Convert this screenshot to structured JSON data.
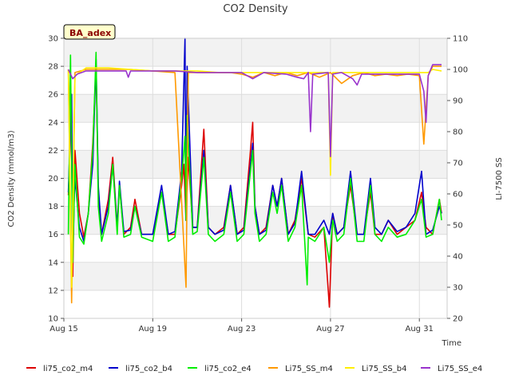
{
  "chart_data": {
    "type": "line",
    "title": "CO2 Density",
    "xlabel": "Time",
    "ylabel": "CO2 Density (mmol/m3)",
    "y2label": "LI-7500 SS",
    "annotation": "BA_adex",
    "x_ticks": [
      "Aug 15",
      "Aug 19",
      "Aug 23",
      "Aug 27",
      "Aug 31"
    ],
    "x_tick_days": [
      0,
      4,
      8,
      12,
      16
    ],
    "xlim_days": [
      0,
      17.25
    ],
    "ylim": [
      10,
      30
    ],
    "y_ticks": [
      10,
      12,
      14,
      16,
      18,
      20,
      22,
      24,
      26,
      28,
      30
    ],
    "y2lim": [
      20,
      110
    ],
    "y2_ticks": [
      20,
      30,
      40,
      50,
      60,
      70,
      80,
      90,
      100,
      110
    ],
    "grid": true,
    "legend_position": "bottom",
    "series": [
      {
        "name": "li75_co2_m4",
        "color": "#dd0000",
        "axis": "left",
        "points": [
          [
            0.2,
            18.8
          ],
          [
            0.35,
            25
          ],
          [
            0.4,
            13
          ],
          [
            0.5,
            22
          ],
          [
            0.7,
            17.5
          ],
          [
            0.9,
            15.8
          ],
          [
            1.1,
            17.5
          ],
          [
            1.3,
            22.5
          ],
          [
            1.45,
            28
          ],
          [
            1.55,
            19
          ],
          [
            1.7,
            16
          ],
          [
            2.0,
            18.5
          ],
          [
            2.2,
            21.5
          ],
          [
            2.4,
            16.5
          ],
          [
            2.5,
            19.5
          ],
          [
            2.7,
            16
          ],
          [
            3.0,
            16.5
          ],
          [
            3.2,
            18.5
          ],
          [
            3.5,
            16
          ],
          [
            4.0,
            16
          ],
          [
            4.4,
            19
          ],
          [
            4.7,
            16
          ],
          [
            5.0,
            16
          ],
          [
            5.3,
            19.5
          ],
          [
            5.4,
            21
          ],
          [
            5.5,
            17
          ],
          [
            5.6,
            21.5
          ],
          [
            5.8,
            16.5
          ],
          [
            6.0,
            16.5
          ],
          [
            6.3,
            23.5
          ],
          [
            6.5,
            16.5
          ],
          [
            6.8,
            16
          ],
          [
            7.2,
            16.5
          ],
          [
            7.5,
            19.5
          ],
          [
            7.8,
            16
          ],
          [
            8.1,
            16.5
          ],
          [
            8.4,
            22
          ],
          [
            8.5,
            24
          ],
          [
            8.6,
            18
          ],
          [
            8.8,
            16
          ],
          [
            9.1,
            16.5
          ],
          [
            9.4,
            19.5
          ],
          [
            9.6,
            18
          ],
          [
            9.8,
            20
          ],
          [
            10.1,
            16
          ],
          [
            10.4,
            17
          ],
          [
            10.7,
            20
          ],
          [
            11.0,
            16
          ],
          [
            11.3,
            15.8
          ],
          [
            11.7,
            16.5
          ],
          [
            11.9,
            12
          ],
          [
            11.95,
            10.8
          ],
          [
            12.1,
            17.5
          ],
          [
            12.3,
            16
          ],
          [
            12.6,
            16.5
          ],
          [
            12.9,
            19.5
          ],
          [
            13.2,
            16
          ],
          [
            13.5,
            16
          ],
          [
            13.8,
            19
          ],
          [
            14.0,
            16
          ],
          [
            14.3,
            16
          ],
          [
            14.6,
            17
          ],
          [
            15.0,
            16
          ],
          [
            15.4,
            16.5
          ],
          [
            15.8,
            17
          ],
          [
            16.1,
            19
          ],
          [
            16.3,
            16.5
          ],
          [
            16.6,
            16
          ],
          [
            16.9,
            18.5
          ],
          [
            17.0,
            17.5
          ]
        ]
      },
      {
        "name": "li75_co2_b4",
        "color": "#0000cc",
        "axis": "left",
        "points": [
          [
            0.2,
            19
          ],
          [
            0.35,
            26
          ],
          [
            0.4,
            16
          ],
          [
            0.5,
            20
          ],
          [
            0.7,
            16.5
          ],
          [
            0.9,
            15.5
          ],
          [
            1.1,
            17.5
          ],
          [
            1.3,
            21
          ],
          [
            1.45,
            28.5
          ],
          [
            1.55,
            19.5
          ],
          [
            1.7,
            16
          ],
          [
            2.0,
            18
          ],
          [
            2.2,
            21
          ],
          [
            2.4,
            16.5
          ],
          [
            2.5,
            19.8
          ],
          [
            2.7,
            16.2
          ],
          [
            3.0,
            16.3
          ],
          [
            3.2,
            18
          ],
          [
            3.5,
            16
          ],
          [
            4.0,
            16
          ],
          [
            4.4,
            19.5
          ],
          [
            4.7,
            16
          ],
          [
            5.0,
            16.2
          ],
          [
            5.3,
            20.5
          ],
          [
            5.45,
            30
          ],
          [
            5.5,
            17
          ],
          [
            5.55,
            28
          ],
          [
            5.8,
            16.5
          ],
          [
            6.0,
            16.5
          ],
          [
            6.3,
            22
          ],
          [
            6.5,
            16.5
          ],
          [
            6.8,
            16
          ],
          [
            7.2,
            16.3
          ],
          [
            7.5,
            19.5
          ],
          [
            7.8,
            16
          ],
          [
            8.1,
            16.3
          ],
          [
            8.4,
            21
          ],
          [
            8.5,
            22.5
          ],
          [
            8.6,
            18
          ],
          [
            8.8,
            16
          ],
          [
            9.1,
            16.3
          ],
          [
            9.4,
            19.5
          ],
          [
            9.6,
            18
          ],
          [
            9.8,
            20
          ],
          [
            10.1,
            16
          ],
          [
            10.4,
            16.8
          ],
          [
            10.7,
            20.5
          ],
          [
            11.0,
            16
          ],
          [
            11.3,
            16
          ],
          [
            11.7,
            17
          ],
          [
            11.95,
            16
          ],
          [
            12.1,
            17.5
          ],
          [
            12.3,
            16
          ],
          [
            12.6,
            16.5
          ],
          [
            12.9,
            20.5
          ],
          [
            13.2,
            16
          ],
          [
            13.5,
            16
          ],
          [
            13.8,
            20
          ],
          [
            14.0,
            16.5
          ],
          [
            14.3,
            16
          ],
          [
            14.6,
            17
          ],
          [
            15.0,
            16.2
          ],
          [
            15.4,
            16.5
          ],
          [
            15.8,
            17.5
          ],
          [
            16.0,
            19.5
          ],
          [
            16.1,
            20.5
          ],
          [
            16.3,
            16
          ],
          [
            16.6,
            16.3
          ],
          [
            16.9,
            18
          ],
          [
            17.0,
            17.5
          ]
        ]
      },
      {
        "name": "li75_co2_e4",
        "color": "#00ee00",
        "axis": "left",
        "points": [
          [
            0.2,
            16
          ],
          [
            0.3,
            28.8
          ],
          [
            0.4,
            14
          ],
          [
            0.5,
            21
          ],
          [
            0.7,
            15.8
          ],
          [
            0.9,
            15.3
          ],
          [
            1.1,
            17.5
          ],
          [
            1.3,
            22
          ],
          [
            1.45,
            29
          ],
          [
            1.55,
            18
          ],
          [
            1.7,
            15.5
          ],
          [
            2.0,
            17.5
          ],
          [
            2.2,
            21
          ],
          [
            2.4,
            16
          ],
          [
            2.5,
            19.5
          ],
          [
            2.7,
            15.8
          ],
          [
            3.0,
            16
          ],
          [
            3.2,
            18
          ],
          [
            3.5,
            15.8
          ],
          [
            4.0,
            15.5
          ],
          [
            4.4,
            19
          ],
          [
            4.7,
            15.5
          ],
          [
            5.0,
            15.8
          ],
          [
            5.3,
            20
          ],
          [
            5.45,
            23
          ],
          [
            5.5,
            17
          ],
          [
            5.55,
            24.5
          ],
          [
            5.8,
            16
          ],
          [
            6.0,
            16.2
          ],
          [
            6.3,
            21.5
          ],
          [
            6.5,
            16
          ],
          [
            6.8,
            15.5
          ],
          [
            7.2,
            16
          ],
          [
            7.5,
            19
          ],
          [
            7.8,
            15.5
          ],
          [
            8.1,
            16
          ],
          [
            8.4,
            20.5
          ],
          [
            8.5,
            22
          ],
          [
            8.6,
            17.5
          ],
          [
            8.8,
            15.5
          ],
          [
            9.1,
            16
          ],
          [
            9.4,
            19
          ],
          [
            9.6,
            17.5
          ],
          [
            9.8,
            19.5
          ],
          [
            10.1,
            15.5
          ],
          [
            10.4,
            16.5
          ],
          [
            10.7,
            19.5
          ],
          [
            10.95,
            12.4
          ],
          [
            11.0,
            15.8
          ],
          [
            11.3,
            15.5
          ],
          [
            11.7,
            16.5
          ],
          [
            11.95,
            14
          ],
          [
            12.1,
            17
          ],
          [
            12.3,
            15.5
          ],
          [
            12.6,
            16
          ],
          [
            12.9,
            20
          ],
          [
            13.2,
            15.5
          ],
          [
            13.5,
            15.5
          ],
          [
            13.8,
            19.5
          ],
          [
            14.0,
            16
          ],
          [
            14.3,
            15.5
          ],
          [
            14.6,
            16.5
          ],
          [
            15.0,
            15.8
          ],
          [
            15.4,
            16
          ],
          [
            15.8,
            17
          ],
          [
            16.1,
            18.5
          ],
          [
            16.3,
            15.8
          ],
          [
            16.6,
            16
          ],
          [
            16.9,
            18.5
          ],
          [
            17.0,
            17
          ]
        ]
      },
      {
        "name": "Li75_SS_m4",
        "color": "#ff9900",
        "axis": "right",
        "points": [
          [
            0.2,
            100
          ],
          [
            0.35,
            25
          ],
          [
            0.5,
            99
          ],
          [
            1.0,
            100
          ],
          [
            2.0,
            100
          ],
          [
            3.0,
            100
          ],
          [
            4.0,
            99.5
          ],
          [
            5.0,
            99
          ],
          [
            5.5,
            30
          ],
          [
            5.6,
            99
          ],
          [
            6.5,
            99
          ],
          [
            7.5,
            99
          ],
          [
            8.0,
            98.5
          ],
          [
            8.5,
            97.5
          ],
          [
            9.0,
            99
          ],
          [
            9.5,
            98
          ],
          [
            10.0,
            99
          ],
          [
            10.5,
            98
          ],
          [
            11.0,
            99
          ],
          [
            11.5,
            97.5
          ],
          [
            12.0,
            99
          ],
          [
            12.5,
            95.5
          ],
          [
            13.0,
            98
          ],
          [
            13.5,
            99
          ],
          [
            14.0,
            98
          ],
          [
            14.5,
            98.5
          ],
          [
            15.0,
            98
          ],
          [
            15.5,
            98.5
          ],
          [
            16.0,
            98
          ],
          [
            16.2,
            76
          ],
          [
            16.4,
            98
          ],
          [
            16.6,
            101
          ],
          [
            17.0,
            101
          ]
        ]
      },
      {
        "name": "Li75_SS_b4",
        "color": "#ffee00",
        "axis": "right",
        "points": [
          [
            0.2,
            100
          ],
          [
            0.35,
            30
          ],
          [
            0.5,
            98
          ],
          [
            1.0,
            100.5
          ],
          [
            2.0,
            100.5
          ],
          [
            3.0,
            100
          ],
          [
            4.0,
            99.5
          ],
          [
            5.0,
            99.5
          ],
          [
            6.0,
            99.5
          ],
          [
            7.0,
            99
          ],
          [
            8.0,
            99
          ],
          [
            9.0,
            99
          ],
          [
            10.0,
            99
          ],
          [
            11.0,
            99
          ],
          [
            11.9,
            99
          ],
          [
            12.0,
            66
          ],
          [
            12.1,
            99
          ],
          [
            13.0,
            99
          ],
          [
            14.0,
            99
          ],
          [
            15.0,
            99
          ],
          [
            16.0,
            99
          ],
          [
            16.4,
            99
          ],
          [
            16.6,
            100
          ],
          [
            17.0,
            99.5
          ]
        ]
      },
      {
        "name": "Li75_SS_e4",
        "color": "#9933cc",
        "axis": "right",
        "points": [
          [
            0.2,
            100
          ],
          [
            0.4,
            97
          ],
          [
            0.6,
            98.5
          ],
          [
            1.0,
            99.5
          ],
          [
            2.0,
            99.5
          ],
          [
            2.8,
            99.5
          ],
          [
            2.9,
            97.5
          ],
          [
            3.0,
            99.5
          ],
          [
            4.0,
            99.5
          ],
          [
            5.0,
            99.5
          ],
          [
            6.0,
            99
          ],
          [
            7.0,
            99
          ],
          [
            8.0,
            99
          ],
          [
            8.5,
            97
          ],
          [
            9.0,
            99
          ],
          [
            10.0,
            98.5
          ],
          [
            10.5,
            97.5
          ],
          [
            10.8,
            97
          ],
          [
            11.0,
            99
          ],
          [
            11.1,
            80
          ],
          [
            11.2,
            98.5
          ],
          [
            11.9,
            99
          ],
          [
            12.0,
            72
          ],
          [
            12.1,
            98.5
          ],
          [
            12.5,
            99
          ],
          [
            13.0,
            97
          ],
          [
            13.2,
            95
          ],
          [
            13.4,
            98.5
          ],
          [
            14.0,
            98.5
          ],
          [
            15.0,
            98.5
          ],
          [
            16.0,
            98.5
          ],
          [
            16.2,
            93
          ],
          [
            16.3,
            83
          ],
          [
            16.4,
            98
          ],
          [
            16.6,
            101.5
          ],
          [
            17.0,
            101.5
          ]
        ]
      }
    ]
  }
}
